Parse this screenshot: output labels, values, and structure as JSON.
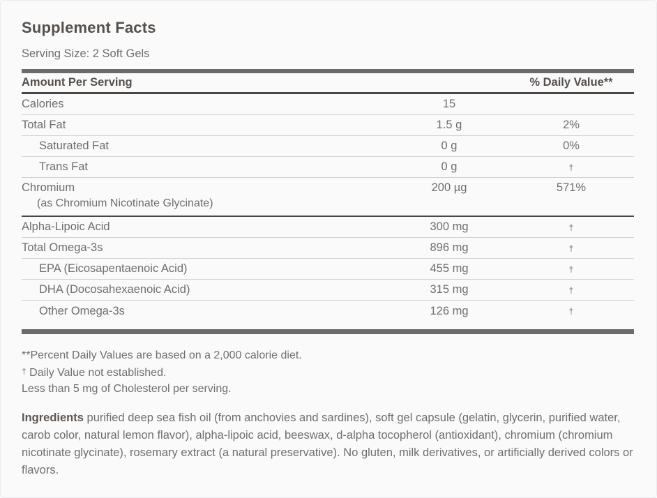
{
  "colors": {
    "title": "#55504c",
    "body_text": "#6e6e6e",
    "thick_bar": "#6b6b6b",
    "dark_rule": "#474747",
    "light_rule": "#d2d2d4",
    "background": "#fafafb"
  },
  "label": {
    "title": "Supplement Facts",
    "serving_size": "Serving Size: 2 Soft Gels",
    "table": {
      "amount_header": "Amount Per Serving",
      "dv_header": "% Daily Value**",
      "rows": [
        {
          "name": "Calories",
          "amount": "15",
          "dv": ""
        },
        {
          "name": "Total Fat",
          "amount": "1.5 g",
          "dv": "2%"
        },
        {
          "name": "Saturated Fat",
          "amount": "0 g",
          "dv": "0%"
        },
        {
          "name": "Trans Fat",
          "amount": "0 g",
          "dv": "†"
        },
        {
          "name": "Chromium",
          "subname": "(as Chromium Nicotinate Glycinate)",
          "amount": "200 µg",
          "dv": "571%"
        },
        {
          "name": "Alpha-Lipoic Acid",
          "amount": "300 mg",
          "dv": "†"
        },
        {
          "name": "Total Omega-3s",
          "amount": "896 mg",
          "dv": "†"
        },
        {
          "name": "EPA (Eicosapentaenoic Acid)",
          "amount": "455 mg",
          "dv": "†"
        },
        {
          "name": "DHA (Docosahexaenoic Acid)",
          "amount": "315 mg",
          "dv": "†"
        },
        {
          "name": "Other Omega-3s",
          "amount": "126 mg",
          "dv": "†"
        }
      ]
    },
    "footnotes": {
      "percent_dv": "**Percent Daily Values are based on a 2,000 calorie diet.",
      "dagger_symbol": "†",
      "dagger_text": "Daily Value not established.",
      "cholesterol": "Less than 5 mg of Cholesterol per serving."
    },
    "ingredients": {
      "heading": "Ingredients",
      "text": "purified deep sea fish oil (from anchovies and sardines), soft gel capsule (gelatin, glycerin, purified water, carob color, natural lemon flavor), alpha-lipoic acid, beeswax, d-alpha tocopherol (antioxidant), chromium (chromium nicotinate glycinate), rosemary extract (a natural preservative). No gluten, milk derivatives, or artificially derived colors or flavors."
    }
  }
}
